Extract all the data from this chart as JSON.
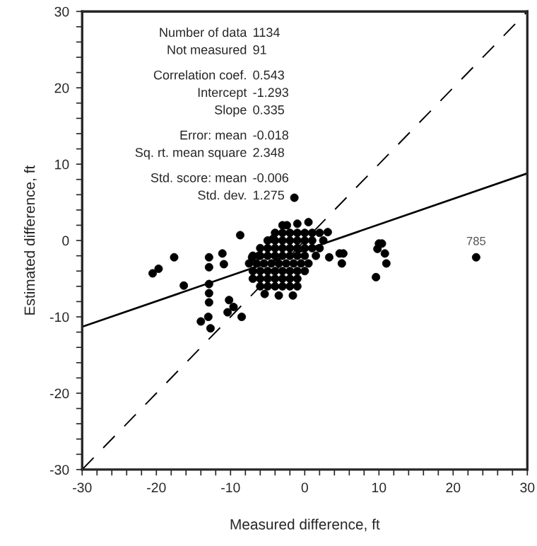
{
  "chart_data": {
    "type": "scatter",
    "xlabel": "Measured difference, ft",
    "ylabel": "Estimated difference, ft",
    "xlim": [
      -30,
      30
    ],
    "ylim": [
      -30,
      30
    ],
    "xticks": [
      -30,
      {
        "value": -28,
        "label": null
      },
      {
        "value": -26,
        "label": null
      },
      {
        "value": -24,
        "label": null
      },
      {
        "value": -22,
        "label": null
      },
      -20,
      {
        "value": -18,
        "label": null
      },
      {
        "value": -16,
        "label": null
      },
      {
        "value": -14,
        "label": null
      },
      {
        "value": -12,
        "label": null
      },
      -10,
      {
        "value": -8,
        "label": null
      },
      {
        "value": -6,
        "label": null
      },
      {
        "value": -4,
        "label": null
      },
      {
        "value": -2,
        "label": null
      },
      0,
      {
        "value": 2,
        "label": null
      },
      {
        "value": 4,
        "label": null
      },
      {
        "value": 6,
        "label": null
      },
      {
        "value": 8,
        "label": null
      },
      10,
      {
        "value": 12,
        "label": null
      },
      {
        "value": 14,
        "label": null
      },
      {
        "value": 16,
        "label": null
      },
      {
        "value": 18,
        "label": null
      },
      20,
      {
        "value": 22,
        "label": null
      },
      {
        "value": 24,
        "label": null
      },
      {
        "value": 26,
        "label": null
      },
      {
        "value": 28,
        "label": null
      },
      30
    ],
    "yticks": [
      -30,
      {
        "value": -28,
        "label": null
      },
      {
        "value": -26,
        "label": null
      },
      {
        "value": -24,
        "label": null
      },
      {
        "value": -22,
        "label": null
      },
      -20,
      {
        "value": -18,
        "label": null
      },
      {
        "value": -16,
        "label": null
      },
      {
        "value": -14,
        "label": null
      },
      {
        "value": -12,
        "label": null
      },
      -10,
      {
        "value": -8,
        "label": null
      },
      {
        "value": -6,
        "label": null
      },
      {
        "value": -4,
        "label": null
      },
      {
        "value": -2,
        "label": null
      },
      0,
      {
        "value": 2,
        "label": null
      },
      {
        "value": 4,
        "label": null
      },
      {
        "value": 6,
        "label": null
      },
      {
        "value": 8,
        "label": null
      },
      10,
      {
        "value": 12,
        "label": null
      },
      {
        "value": 14,
        "label": null
      },
      {
        "value": 16,
        "label": null
      },
      {
        "value": 18,
        "label": null
      },
      20,
      {
        "value": 22,
        "label": null
      },
      {
        "value": 24,
        "label": null
      },
      {
        "value": 26,
        "label": null
      },
      {
        "value": 28,
        "label": null
      },
      30
    ],
    "grid": false,
    "legend": false,
    "series": [
      {
        "color": "#000000",
        "marker": "circle",
        "x": [
          -1.4,
          23.1,
          -17.6,
          -19.7,
          -20.5,
          -16.3,
          -12.9,
          -12.9,
          -8.7,
          -12.9,
          -12.9,
          -12.9,
          -13,
          -14,
          -12.7,
          -10.2,
          -9.6,
          -10.4,
          -8.5,
          10,
          10.4,
          9.8,
          10.8,
          11,
          9.6,
          4.7,
          5.2,
          5,
          3.1,
          3.3,
          -11.1,
          -10.9,
          -7.1,
          -6.2,
          -4.3,
          -2.4,
          -1,
          0.5,
          -3,
          -4,
          -3,
          -2,
          -1,
          0,
          1,
          2,
          -5,
          -4,
          -3,
          -2,
          -1,
          0,
          1,
          2.5,
          -6,
          -5,
          -4,
          -3,
          -2,
          -1,
          0,
          1,
          2,
          -7,
          -6,
          -5,
          -4,
          -3,
          -2,
          -1,
          0,
          1.5,
          -7.5,
          -6.5,
          -5.5,
          -4.5,
          -3.5,
          -2.5,
          -1.5,
          -0.5,
          0.5,
          -7,
          -6,
          -5,
          -4,
          -3,
          -2,
          -1,
          0,
          -7,
          -6,
          -5,
          -4,
          -3,
          -2,
          -1,
          -6,
          -5,
          -4,
          -3,
          -2,
          -1,
          -5.4,
          -3.5,
          -1.6
        ],
        "values": [
          5.6,
          -2.2,
          -2.2,
          -3.7,
          -4.3,
          -5.9,
          -2.2,
          -3.5,
          0.7,
          -5.7,
          -6.9,
          -8.1,
          -10,
          -10.6,
          -11.5,
          -7.8,
          -8.7,
          -9.4,
          -10,
          -0.4,
          -0.4,
          -1.1,
          -1.7,
          -3,
          -4.8,
          -1.7,
          -1.7,
          -3,
          1.1,
          -2.2,
          -1.7,
          -3.1,
          -2.2,
          -2,
          0.2,
          2,
          2.2,
          2.4,
          2,
          1,
          1,
          1,
          1,
          1,
          1,
          1,
          0,
          0,
          0,
          0,
          0,
          0,
          0,
          0,
          -1,
          -1,
          -1,
          -1,
          -1,
          -1,
          -1,
          -1,
          -1,
          -2,
          -2,
          -2,
          -2,
          -2,
          -2,
          -2,
          -2,
          -2,
          -3,
          -3,
          -3,
          -3,
          -3,
          -3,
          -3,
          -3,
          -3,
          -4,
          -4,
          -4,
          -4,
          -4,
          -4,
          -4,
          -4,
          -5,
          -5,
          -5,
          -5,
          -5,
          -5,
          -5,
          -6,
          -6,
          -6,
          -6,
          -6,
          -6,
          -7,
          -7.2,
          -7.2
        ]
      },
      {
        "type": "line",
        "color": "#000000",
        "marker": "none",
        "line_style": "solid",
        "x": [
          -30,
          30
        ],
        "values": [
          -11.3,
          8.8
        ]
      },
      {
        "type": "line",
        "color": "#000000",
        "marker": "none",
        "line_style": "dashed",
        "x": [
          -30,
          30
        ],
        "values": [
          -30,
          30
        ]
      }
    ],
    "annotations": [
      "Number of data 1134",
      "Not measured 91",
      "Correlation coef. 0.543",
      "Intercept -1.293",
      "Slope 0.335",
      "Error: mean -0.018",
      "Sq. rt. mean square 2.348",
      "Std. score: mean -0.006",
      "Std. dev. 1.275",
      {
        "text": "785",
        "x": 23.1,
        "y": -2.2
      }
    ]
  }
}
